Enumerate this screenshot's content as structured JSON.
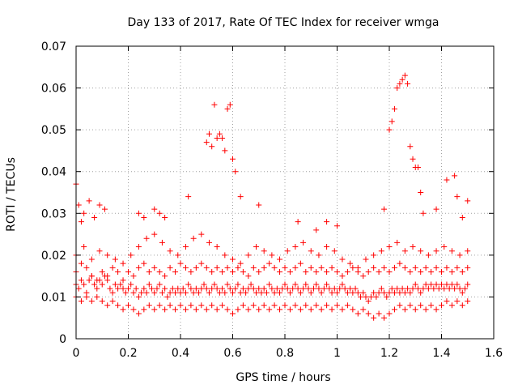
{
  "chart_data": {
    "type": "scatter",
    "title": "Day 133 of 2017, Rate Of TEC Index for receiver wmga",
    "xlabel": "GPS time / hours",
    "ylabel": "ROTI / TECUs",
    "xlim": [
      0,
      1.6
    ],
    "ylim": [
      0,
      0.07
    ],
    "xticks": [
      0,
      0.2,
      0.4,
      0.6,
      0.8,
      1,
      1.2,
      1.4,
      1.6
    ],
    "xtick_labels": [
      "0",
      "0.2",
      "0.4",
      "0.6",
      "0.8",
      "1",
      "1.2",
      "1.4",
      "1.6"
    ],
    "yticks": [
      0,
      0.01,
      0.02,
      0.03,
      0.04,
      0.05,
      0.06,
      0.07
    ],
    "ytick_labels": [
      "0",
      "0.01",
      "0.02",
      "0.03",
      "0.04",
      "0.05",
      "0.06",
      "0.07"
    ],
    "grid": true,
    "marker": "plus",
    "color": "#ff0000",
    "series": [
      {
        "x": [
          0.0,
          0.01,
          0.02,
          0.03,
          0.04,
          0.05,
          0.06,
          0.07,
          0.08,
          0.09,
          0.1,
          0.11,
          0.12,
          0.13,
          0.14,
          0.15,
          0.16,
          0.17,
          0.18,
          0.19,
          0.2,
          0.21,
          0.22,
          0.23,
          0.24,
          0.25,
          0.26,
          0.27,
          0.28,
          0.29,
          0.3,
          0.31,
          0.32,
          0.33,
          0.34,
          0.35,
          0.36,
          0.37,
          0.38,
          0.39,
          0.4,
          0.41,
          0.42,
          0.43,
          0.44,
          0.45,
          0.46,
          0.47,
          0.48,
          0.49,
          0.5,
          0.51,
          0.52,
          0.53,
          0.54,
          0.55,
          0.56,
          0.57,
          0.58,
          0.59,
          0.6,
          0.61,
          0.62,
          0.63,
          0.64,
          0.65,
          0.66,
          0.67,
          0.68,
          0.69,
          0.7,
          0.71,
          0.72,
          0.73,
          0.74,
          0.75,
          0.76,
          0.77,
          0.78,
          0.79,
          0.8,
          0.81,
          0.82,
          0.83,
          0.84,
          0.85,
          0.86,
          0.87,
          0.88,
          0.89,
          0.9,
          0.91,
          0.92,
          0.93,
          0.94,
          0.95,
          0.96,
          0.97,
          0.98,
          0.99,
          1.0,
          1.01,
          1.02,
          1.03,
          1.04,
          1.05,
          1.06,
          1.07,
          1.08,
          1.09,
          1.1,
          1.11,
          1.12,
          1.13,
          1.14,
          1.15,
          1.16,
          1.17,
          1.18,
          1.19,
          1.2,
          1.21,
          1.22,
          1.23,
          1.24,
          1.25,
          1.26,
          1.27,
          1.28,
          1.29,
          1.3,
          1.31,
          1.32,
          1.33,
          1.34,
          1.35,
          1.36,
          1.37,
          1.38,
          1.39,
          1.4,
          1.41,
          1.42,
          1.43,
          1.44,
          1.45,
          1.46,
          1.47,
          1.48,
          1.49,
          1.5
        ],
        "y": [
          0.013,
          0.012,
          0.014,
          0.013,
          0.011,
          0.014,
          0.015,
          0.013,
          0.012,
          0.014,
          0.013,
          0.015,
          0.014,
          0.012,
          0.011,
          0.013,
          0.012,
          0.013,
          0.012,
          0.011,
          0.012,
          0.013,
          0.011,
          0.012,
          0.01,
          0.011,
          0.012,
          0.011,
          0.013,
          0.012,
          0.011,
          0.012,
          0.013,
          0.011,
          0.012,
          0.01,
          0.011,
          0.012,
          0.011,
          0.012,
          0.011,
          0.012,
          0.011,
          0.013,
          0.012,
          0.011,
          0.012,
          0.011,
          0.012,
          0.013,
          0.012,
          0.011,
          0.012,
          0.013,
          0.012,
          0.011,
          0.012,
          0.011,
          0.013,
          0.012,
          0.011,
          0.012,
          0.013,
          0.011,
          0.012,
          0.011,
          0.012,
          0.013,
          0.012,
          0.011,
          0.012,
          0.011,
          0.012,
          0.011,
          0.013,
          0.012,
          0.011,
          0.012,
          0.011,
          0.012,
          0.013,
          0.012,
          0.011,
          0.012,
          0.013,
          0.012,
          0.011,
          0.012,
          0.013,
          0.012,
          0.011,
          0.012,
          0.013,
          0.012,
          0.011,
          0.012,
          0.013,
          0.012,
          0.011,
          0.012,
          0.011,
          0.012,
          0.013,
          0.012,
          0.011,
          0.012,
          0.011,
          0.012,
          0.011,
          0.01,
          0.011,
          0.01,
          0.009,
          0.01,
          0.011,
          0.01,
          0.011,
          0.012,
          0.011,
          0.01,
          0.011,
          0.012,
          0.011,
          0.012,
          0.011,
          0.012,
          0.011,
          0.012,
          0.011,
          0.012,
          0.013,
          0.012,
          0.011,
          0.012,
          0.013,
          0.012,
          0.013,
          0.012,
          0.013,
          0.012,
          0.013,
          0.012,
          0.013,
          0.012,
          0.013,
          0.012,
          0.013,
          0.012,
          0.011,
          0.012,
          0.013
        ]
      },
      {
        "x": [
          0.0,
          0.02,
          0.04,
          0.06,
          0.08,
          0.1,
          0.12,
          0.14,
          0.16,
          0.18,
          0.2,
          0.22,
          0.24,
          0.26,
          0.28,
          0.3,
          0.32,
          0.34,
          0.36,
          0.38,
          0.4,
          0.42,
          0.44,
          0.46,
          0.48,
          0.5,
          0.52,
          0.54,
          0.56,
          0.58,
          0.6,
          0.62,
          0.64,
          0.66,
          0.68,
          0.7,
          0.72,
          0.74,
          0.76,
          0.78,
          0.8,
          0.82,
          0.84,
          0.86,
          0.88,
          0.9,
          0.92,
          0.94,
          0.96,
          0.98,
          1.0,
          1.02,
          1.04,
          1.06,
          1.08,
          1.1,
          1.12,
          1.14,
          1.16,
          1.18,
          1.2,
          1.22,
          1.24,
          1.26,
          1.28,
          1.3,
          1.32,
          1.34,
          1.36,
          1.38,
          1.4,
          1.42,
          1.44,
          1.46,
          1.48,
          1.5
        ],
        "y": [
          0.016,
          0.018,
          0.017,
          0.015,
          0.014,
          0.016,
          0.015,
          0.017,
          0.016,
          0.014,
          0.016,
          0.015,
          0.017,
          0.018,
          0.016,
          0.017,
          0.016,
          0.015,
          0.017,
          0.016,
          0.018,
          0.017,
          0.016,
          0.017,
          0.018,
          0.017,
          0.016,
          0.017,
          0.016,
          0.017,
          0.016,
          0.017,
          0.016,
          0.015,
          0.017,
          0.016,
          0.017,
          0.018,
          0.017,
          0.016,
          0.017,
          0.016,
          0.017,
          0.018,
          0.016,
          0.017,
          0.016,
          0.017,
          0.016,
          0.017,
          0.016,
          0.015,
          0.016,
          0.017,
          0.016,
          0.015,
          0.016,
          0.017,
          0.016,
          0.017,
          0.016,
          0.017,
          0.018,
          0.017,
          0.016,
          0.017,
          0.016,
          0.017,
          0.016,
          0.017,
          0.016,
          0.017,
          0.016,
          0.017,
          0.016,
          0.017
        ]
      },
      {
        "x": [
          0.0,
          0.02,
          0.04,
          0.06,
          0.08,
          0.1,
          0.12,
          0.14,
          0.16,
          0.18,
          0.2,
          0.22,
          0.24,
          0.26,
          0.28,
          0.3,
          0.32,
          0.34,
          0.36,
          0.38,
          0.4,
          0.42,
          0.44,
          0.46,
          0.48,
          0.5,
          0.52,
          0.54,
          0.56,
          0.58,
          0.6,
          0.62,
          0.64,
          0.66,
          0.68,
          0.7,
          0.72,
          0.74,
          0.76,
          0.78,
          0.8,
          0.82,
          0.84,
          0.86,
          0.88,
          0.9,
          0.92,
          0.94,
          0.96,
          0.98,
          1.0,
          1.02,
          1.04,
          1.06,
          1.08,
          1.1,
          1.12,
          1.14,
          1.16,
          1.18,
          1.2,
          1.22,
          1.24,
          1.26,
          1.28,
          1.3,
          1.32,
          1.34,
          1.36,
          1.38,
          1.4,
          1.42,
          1.44,
          1.46,
          1.48,
          1.5
        ],
        "y": [
          0.01,
          0.009,
          0.01,
          0.009,
          0.01,
          0.009,
          0.008,
          0.009,
          0.008,
          0.007,
          0.008,
          0.007,
          0.006,
          0.007,
          0.008,
          0.007,
          0.008,
          0.007,
          0.008,
          0.007,
          0.008,
          0.007,
          0.008,
          0.007,
          0.008,
          0.007,
          0.008,
          0.007,
          0.008,
          0.007,
          0.006,
          0.007,
          0.008,
          0.007,
          0.008,
          0.007,
          0.008,
          0.007,
          0.008,
          0.007,
          0.008,
          0.007,
          0.008,
          0.007,
          0.008,
          0.007,
          0.008,
          0.007,
          0.008,
          0.007,
          0.008,
          0.007,
          0.008,
          0.007,
          0.006,
          0.007,
          0.006,
          0.005,
          0.006,
          0.005,
          0.006,
          0.007,
          0.008,
          0.007,
          0.008,
          0.007,
          0.008,
          0.007,
          0.008,
          0.007,
          0.008,
          0.009,
          0.008,
          0.009,
          0.008,
          0.009
        ]
      },
      {
        "x": [
          0.0,
          0.03,
          0.06,
          0.09,
          0.12,
          0.15,
          0.18,
          0.21,
          0.24,
          0.27,
          0.3,
          0.33,
          0.36,
          0.39,
          0.42,
          0.45,
          0.48,
          0.51,
          0.54,
          0.57,
          0.6,
          0.63,
          0.66,
          0.69,
          0.72,
          0.75,
          0.78,
          0.81,
          0.84,
          0.87,
          0.9,
          0.93,
          0.96,
          0.99,
          1.02,
          1.05,
          1.08,
          1.11,
          1.14,
          1.17,
          1.2,
          1.23,
          1.26,
          1.29,
          1.32,
          1.35,
          1.38,
          1.41,
          1.44,
          1.47,
          1.5
        ],
        "y": [
          0.02,
          0.022,
          0.019,
          0.021,
          0.02,
          0.019,
          0.018,
          0.02,
          0.022,
          0.024,
          0.025,
          0.023,
          0.021,
          0.02,
          0.022,
          0.024,
          0.025,
          0.023,
          0.022,
          0.02,
          0.019,
          0.018,
          0.02,
          0.022,
          0.021,
          0.02,
          0.019,
          0.021,
          0.022,
          0.023,
          0.021,
          0.02,
          0.022,
          0.021,
          0.019,
          0.018,
          0.017,
          0.019,
          0.02,
          0.021,
          0.022,
          0.023,
          0.021,
          0.022,
          0.021,
          0.02,
          0.021,
          0.022,
          0.021,
          0.02,
          0.021
        ]
      },
      {
        "x": [
          0.0,
          0.01,
          0.02,
          0.03,
          0.05,
          0.07,
          0.09,
          0.11,
          0.24,
          0.26,
          0.3,
          0.32,
          0.34,
          0.43,
          0.5,
          0.51,
          0.52,
          0.53,
          0.54,
          0.55,
          0.56,
          0.57,
          0.58,
          0.59,
          0.6,
          0.61,
          0.63,
          0.7,
          0.85,
          0.92,
          0.96,
          1.0,
          1.18,
          1.2,
          1.21,
          1.22,
          1.23,
          1.24,
          1.25,
          1.26,
          1.27,
          1.28,
          1.29,
          1.3,
          1.31,
          1.32,
          1.33,
          1.38,
          1.42,
          1.45,
          1.46,
          1.48,
          1.5
        ],
        "y": [
          0.037,
          0.032,
          0.028,
          0.03,
          0.033,
          0.029,
          0.032,
          0.031,
          0.03,
          0.029,
          0.031,
          0.03,
          0.029,
          0.034,
          0.047,
          0.049,
          0.046,
          0.056,
          0.048,
          0.049,
          0.048,
          0.045,
          0.055,
          0.056,
          0.043,
          0.04,
          0.034,
          0.032,
          0.028,
          0.026,
          0.028,
          0.027,
          0.031,
          0.05,
          0.052,
          0.055,
          0.06,
          0.061,
          0.062,
          0.063,
          0.061,
          0.046,
          0.043,
          0.041,
          0.041,
          0.035,
          0.03,
          0.031,
          0.038,
          0.039,
          0.034,
          0.029,
          0.033
        ]
      }
    ]
  }
}
